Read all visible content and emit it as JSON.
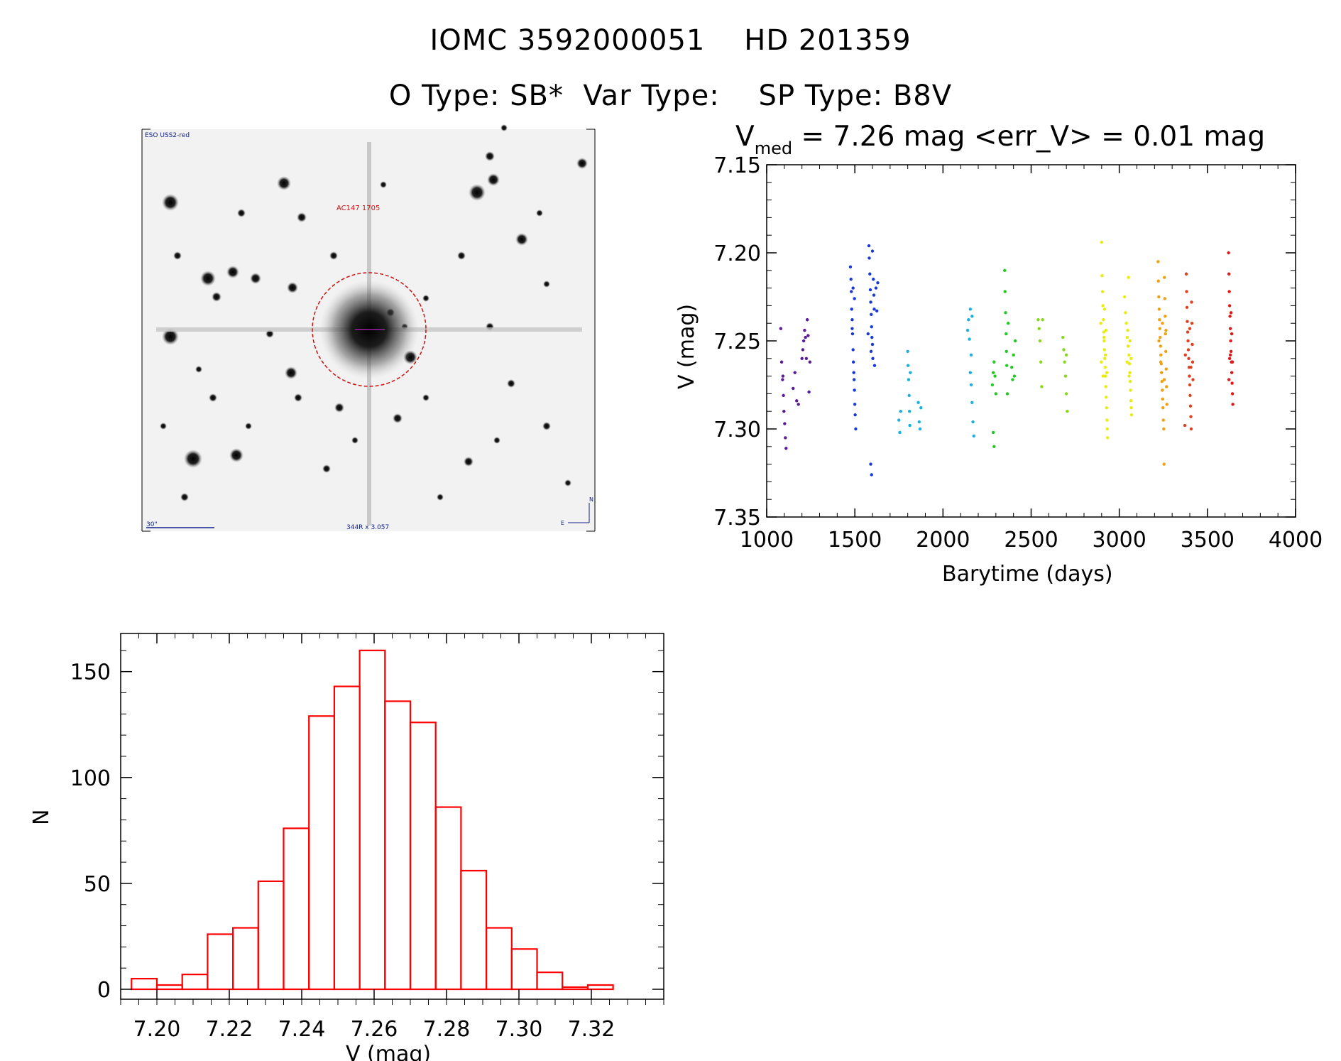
{
  "header": {
    "title_line1": "IOMC 3592000051    HD 201359",
    "title_line2": "O Type: SB*  Var Type:    SP Type: B8V"
  },
  "image_panel": {
    "top_left_label": "ESO USS2-red",
    "target_label": "AC147 1705",
    "scale_label": "30\"",
    "coords_label": "344R x 3.057",
    "compass_n": "N",
    "compass_e": "E"
  },
  "chart_data": [
    {
      "id": "lightcurve",
      "type": "scatter",
      "title_prefix": "V",
      "title_subscript": "med",
      "title_suffix": " = 7.26 mag <err_V> = 0.01 mag",
      "xlabel": "Barytime (days)",
      "ylabel": "V (mag)",
      "xlim": [
        1000,
        4000
      ],
      "ylim": [
        7.35,
        7.15
      ],
      "inverted_y": true,
      "xticks": [
        1000,
        1500,
        2000,
        2500,
        3000,
        3500,
        4000
      ],
      "xtick_labels": [
        "1000",
        "1500",
        "2000",
        "2500",
        "3000",
        "3500",
        "4000"
      ],
      "yticks": [
        7.15,
        7.2,
        7.25,
        7.3,
        7.35
      ],
      "ytick_labels": [
        "7.15",
        "7.20",
        "7.25",
        "7.30",
        "7.35"
      ],
      "color_note": "points colored by time (rainbow: purple to red)",
      "series": [
        {
          "color": "#5a1a9a",
          "points": [
            [
              1080,
              7.243
            ],
            [
              1085,
              7.262
            ],
            [
              1090,
              7.272
            ],
            [
              1095,
              7.281
            ],
            [
              1098,
              7.29
            ],
            [
              1102,
              7.297
            ],
            [
              1106,
              7.305
            ],
            [
              1110,
              7.311
            ],
            [
              1092,
              7.27
            ],
            [
              1150,
              7.277
            ],
            [
              1160,
              7.268
            ],
            [
              1170,
              7.284
            ],
            [
              1180,
              7.286
            ],
            [
              1200,
              7.26
            ],
            [
              1205,
              7.255
            ],
            [
              1210,
              7.25
            ],
            [
              1215,
              7.244
            ],
            [
              1220,
              7.248
            ],
            [
              1225,
              7.26
            ],
            [
              1230,
              7.238
            ],
            [
              1235,
              7.247
            ],
            [
              1240,
              7.279
            ],
            [
              1245,
              7.262
            ]
          ]
        },
        {
          "color": "#1a3ad8",
          "points": [
            [
              1475,
              7.208
            ],
            [
              1478,
              7.215
            ],
            [
              1480,
              7.222
            ],
            [
              1482,
              7.232
            ],
            [
              1485,
              7.238
            ],
            [
              1487,
              7.246
            ],
            [
              1490,
              7.255
            ],
            [
              1492,
              7.262
            ],
            [
              1494,
              7.268
            ],
            [
              1496,
              7.272
            ],
            [
              1498,
              7.278
            ],
            [
              1500,
              7.286
            ],
            [
              1502,
              7.292
            ],
            [
              1505,
              7.3
            ],
            [
              1490,
              7.22
            ],
            [
              1498,
              7.226
            ],
            [
              1485,
              7.243
            ],
            [
              1580,
              7.196
            ],
            [
              1582,
              7.203
            ],
            [
              1585,
              7.212
            ],
            [
              1588,
              7.221
            ],
            [
              1590,
              7.228
            ],
            [
              1593,
              7.235
            ],
            [
              1595,
              7.242
            ],
            [
              1597,
              7.248
            ],
            [
              1600,
              7.252
            ],
            [
              1602,
              7.26
            ],
            [
              1605,
              7.215
            ],
            [
              1608,
              7.224
            ],
            [
              1610,
              7.232
            ],
            [
              1612,
              7.264
            ],
            [
              1590,
              7.32
            ],
            [
              1595,
              7.326
            ],
            [
              1620,
              7.22
            ],
            [
              1625,
              7.233
            ],
            [
              1630,
              7.217
            ],
            [
              1600,
              7.199
            ],
            [
              1575,
              7.246
            ],
            [
              1592,
              7.256
            ]
          ]
        },
        {
          "color": "#1ab0e0",
          "points": [
            [
              1750,
              7.295
            ],
            [
              1755,
              7.302
            ],
            [
              1760,
              7.29
            ],
            [
              1800,
              7.256
            ],
            [
              1802,
              7.264
            ],
            [
              1805,
              7.272
            ],
            [
              1808,
              7.281
            ],
            [
              1810,
              7.29
            ],
            [
              1812,
              7.298
            ],
            [
              1815,
              7.268
            ],
            [
              1860,
              7.285
            ],
            [
              1865,
              7.296
            ],
            [
              1870,
              7.3
            ],
            [
              1875,
              7.288
            ],
            [
              2140,
              7.244
            ],
            [
              2145,
              7.238
            ],
            [
              2150,
              7.249
            ],
            [
              2155,
              7.268
            ],
            [
              2160,
              7.275
            ],
            [
              2165,
              7.285
            ],
            [
              2170,
              7.296
            ],
            [
              2175,
              7.304
            ],
            [
              2160,
              7.258
            ],
            [
              2165,
              7.236
            ],
            [
              2155,
              7.232
            ]
          ]
        },
        {
          "color": "#22cc22",
          "points": [
            [
              2280,
              7.275
            ],
            [
              2285,
              7.268
            ],
            [
              2290,
              7.262
            ],
            [
              2295,
              7.27
            ],
            [
              2300,
              7.28
            ],
            [
              2285,
              7.302
            ],
            [
              2290,
              7.31
            ],
            [
              2350,
              7.21
            ],
            [
              2352,
              7.222
            ],
            [
              2355,
              7.234
            ],
            [
              2358,
              7.246
            ],
            [
              2360,
              7.256
            ],
            [
              2362,
              7.264
            ],
            [
              2365,
              7.28
            ],
            [
              2370,
              7.24
            ],
            [
              2390,
              7.265
            ],
            [
              2395,
              7.272
            ],
            [
              2400,
              7.258
            ],
            [
              2405,
              7.27
            ],
            [
              2410,
              7.25
            ]
          ]
        },
        {
          "color": "#88d81a",
          "points": [
            [
              2540,
              7.238
            ],
            [
              2545,
              7.243
            ],
            [
              2550,
              7.25
            ],
            [
              2555,
              7.262
            ],
            [
              2560,
              7.276
            ],
            [
              2565,
              7.238
            ],
            [
              2680,
              7.248
            ],
            [
              2685,
              7.255
            ],
            [
              2690,
              7.262
            ],
            [
              2695,
              7.27
            ],
            [
              2700,
              7.28
            ],
            [
              2705,
              7.29
            ],
            [
              2700,
              7.258
            ]
          ]
        },
        {
          "color": "#e8ec10",
          "points": [
            [
              2900,
              7.194
            ],
            [
              2902,
              7.213
            ],
            [
              2905,
              7.222
            ],
            [
              2907,
              7.23
            ],
            [
              2910,
              7.238
            ],
            [
              2912,
              7.245
            ],
            [
              2914,
              7.25
            ],
            [
              2916,
              7.255
            ],
            [
              2918,
              7.26
            ],
            [
              2920,
              7.265
            ],
            [
              2922,
              7.27
            ],
            [
              2924,
              7.276
            ],
            [
              2926,
              7.282
            ],
            [
              2928,
              7.288
            ],
            [
              2930,
              7.295
            ],
            [
              2932,
              7.3
            ],
            [
              2934,
              7.305
            ],
            [
              2895,
              7.24
            ],
            [
              2898,
              7.262
            ],
            [
              2908,
              7.27
            ],
            [
              2913,
              7.248
            ],
            [
              2917,
              7.232
            ],
            [
              2921,
              7.258
            ],
            [
              2925,
              7.244
            ],
            [
              2929,
              7.268
            ],
            [
              3030,
              7.225
            ],
            [
              3035,
              7.234
            ],
            [
              3040,
              7.24
            ],
            [
              3045,
              7.248
            ],
            [
              3050,
              7.253
            ],
            [
              3055,
              7.258
            ],
            [
              3058,
              7.263
            ],
            [
              3060,
              7.268
            ],
            [
              3062,
              7.273
            ],
            [
              3064,
              7.278
            ],
            [
              3066,
              7.284
            ],
            [
              3068,
              7.288
            ],
            [
              3070,
              7.292
            ],
            [
              3052,
              7.214
            ],
            [
              3048,
              7.244
            ],
            [
              3044,
              7.262
            ],
            [
              3056,
              7.27
            ],
            [
              3061,
              7.25
            ],
            [
              3067,
              7.26
            ]
          ]
        },
        {
          "color": "#f0a010",
          "points": [
            [
              3220,
              7.205
            ],
            [
              3222,
              7.216
            ],
            [
              3224,
              7.225
            ],
            [
              3226,
              7.232
            ],
            [
              3228,
              7.238
            ],
            [
              3230,
              7.243
            ],
            [
              3232,
              7.248
            ],
            [
              3234,
              7.253
            ],
            [
              3236,
              7.258
            ],
            [
              3238,
              7.263
            ],
            [
              3240,
              7.268
            ],
            [
              3242,
              7.273
            ],
            [
              3244,
              7.278
            ],
            [
              3246,
              7.283
            ],
            [
              3248,
              7.288
            ],
            [
              3250,
              7.295
            ],
            [
              3252,
              7.3
            ],
            [
              3254,
              7.32
            ],
            [
              3256,
              7.214
            ],
            [
              3258,
              7.226
            ],
            [
              3260,
              7.236
            ],
            [
              3262,
              7.246
            ],
            [
              3264,
              7.256
            ],
            [
              3266,
              7.266
            ],
            [
              3268,
              7.276
            ],
            [
              3270,
              7.286
            ],
            [
              3225,
              7.25
            ],
            [
              3235,
              7.262
            ],
            [
              3245,
              7.24
            ],
            [
              3255,
              7.272
            ],
            [
              3265,
              7.244
            ]
          ]
        },
        {
          "color": "#e04020",
          "points": [
            [
              3380,
              7.212
            ],
            [
              3382,
              7.222
            ],
            [
              3384,
              7.231
            ],
            [
              3386,
              7.239
            ],
            [
              3388,
              7.245
            ],
            [
              3390,
              7.25
            ],
            [
              3392,
              7.255
            ],
            [
              3394,
              7.26
            ],
            [
              3396,
              7.265
            ],
            [
              3398,
              7.27
            ],
            [
              3400,
              7.275
            ],
            [
              3402,
              7.281
            ],
            [
              3404,
              7.287
            ],
            [
              3406,
              7.293
            ],
            [
              3408,
              7.3
            ],
            [
              3410,
              7.228
            ],
            [
              3412,
              7.24
            ],
            [
              3414,
              7.252
            ],
            [
              3416,
              7.262
            ],
            [
              3418,
              7.272
            ],
            [
              3375,
              7.258
            ],
            [
              3372,
              7.298
            ],
            [
              3400,
              7.243
            ],
            [
              3406,
              7.265
            ]
          ]
        },
        {
          "color": "#e01818",
          "points": [
            [
              3620,
              7.2
            ],
            [
              3622,
              7.212
            ],
            [
              3624,
              7.222
            ],
            [
              3626,
              7.23
            ],
            [
              3628,
              7.236
            ],
            [
              3630,
              7.243
            ],
            [
              3632,
              7.25
            ],
            [
              3634,
              7.256
            ],
            [
              3636,
              7.262
            ],
            [
              3638,
              7.268
            ],
            [
              3640,
              7.274
            ],
            [
              3642,
              7.28
            ],
            [
              3644,
              7.286
            ],
            [
              3630,
              7.258
            ],
            [
              3634,
              7.234
            ],
            [
              3638,
              7.246
            ],
            [
              3626,
              7.26
            ],
            [
              3642,
              7.262
            ],
            [
              3622,
              7.272
            ]
          ]
        }
      ]
    },
    {
      "id": "histogram",
      "type": "bar",
      "xlabel": "V (mag)",
      "ylabel": "N",
      "xlim": [
        7.19,
        7.34
      ],
      "ylim": [
        0,
        168
      ],
      "xticks": [
        7.2,
        7.22,
        7.24,
        7.26,
        7.28,
        7.3,
        7.32
      ],
      "xtick_labels": [
        "7.20",
        "7.22",
        "7.24",
        "7.26",
        "7.28",
        "7.30",
        "7.32"
      ],
      "yticks": [
        0,
        50,
        100,
        150
      ],
      "ytick_labels": [
        "0",
        "50",
        "100",
        "150"
      ],
      "bin_width": 0.007,
      "bin_starts": [
        7.193,
        7.2,
        7.207,
        7.214,
        7.221,
        7.228,
        7.235,
        7.242,
        7.249,
        7.256,
        7.263,
        7.27,
        7.277,
        7.284,
        7.291,
        7.298,
        7.305,
        7.312,
        7.319
      ],
      "values": [
        5,
        2,
        7,
        26,
        29,
        51,
        76,
        129,
        143,
        160,
        136,
        126,
        86,
        56,
        29,
        19,
        8,
        1,
        2
      ],
      "bar_color": "#ff0000"
    }
  ]
}
